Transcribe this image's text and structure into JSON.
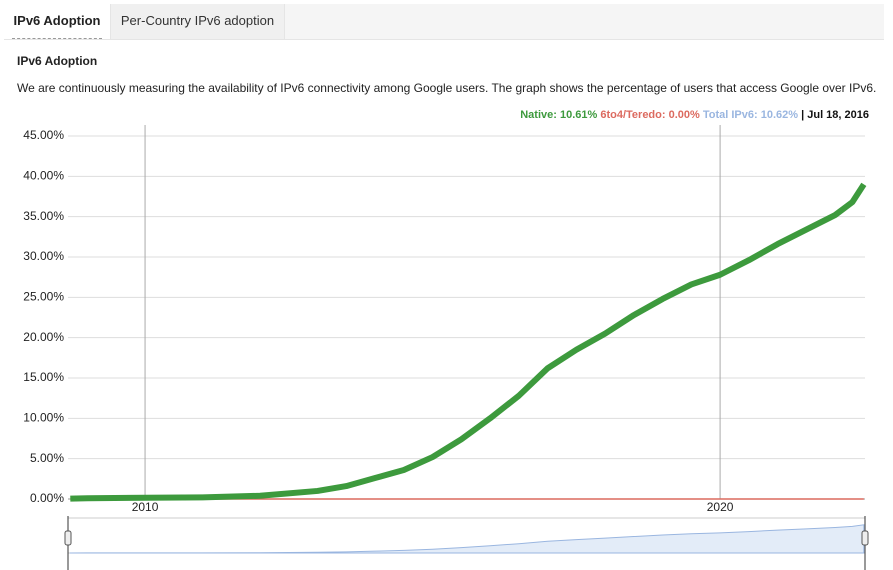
{
  "tabs": [
    "IPv6 Adoption",
    "Per-Country IPv6 adoption"
  ],
  "heading": "IPv6 Adoption",
  "description": "We are continuously measuring the availability of IPv6 connectivity among Google users. The graph shows the percentage of users that access Google over IPv6.",
  "legend": {
    "native": "Native: 10.61%",
    "teredo": "6to4/Teredo: 0.00%",
    "total": "Total IPv6: 10.62%",
    "date": "| Jul 18, 2016"
  },
  "chart_data": {
    "type": "line",
    "x": [
      2008.7,
      2009,
      2010,
      2011,
      2012,
      2013,
      2013.5,
      2014,
      2014.5,
      2015,
      2015.5,
      2016,
      2016.5,
      2017,
      2017.5,
      2018,
      2018.5,
      2019,
      2019.5,
      2020,
      2020.5,
      2021,
      2021.5,
      2022,
      2022.3,
      2022.5
    ],
    "series": [
      {
        "color": "#3d9a3d",
        "values": [
          0.05,
          0.1,
          0.15,
          0.2,
          0.4,
          1.0,
          1.6,
          2.6,
          3.6,
          5.2,
          7.4,
          10.0,
          12.8,
          16.2,
          18.5,
          20.5,
          22.8,
          24.8,
          26.6,
          27.8,
          29.6,
          31.6,
          33.4,
          35.2,
          36.8,
          39.0
        ]
      },
      {
        "color": "#dc6a5f",
        "values": [
          0,
          0,
          0,
          0,
          0,
          0,
          0,
          0,
          0,
          0,
          0,
          0,
          0,
          0,
          0,
          0,
          0,
          0,
          0,
          0,
          0,
          0,
          0,
          0,
          0,
          0
        ]
      }
    ],
    "xlim": [
      2008.66,
      2022.52
    ],
    "xticks": [
      2010,
      2020
    ],
    "ylim": [
      0,
      45
    ],
    "yticks": [
      {
        "value": 0,
        "label": "0.00%"
      },
      {
        "value": 5,
        "label": "5.00%"
      },
      {
        "value": 10,
        "label": "10.00%"
      },
      {
        "value": 15,
        "label": "15.00%"
      },
      {
        "value": 20,
        "label": "20.00%"
      },
      {
        "value": 25,
        "label": "25.00%"
      },
      {
        "value": 30,
        "label": "30.00%"
      },
      {
        "value": 35,
        "label": "35.00%"
      },
      {
        "value": 40,
        "label": "40.00%"
      },
      {
        "value": 45,
        "label": "45.00%"
      }
    ],
    "grid": true
  }
}
